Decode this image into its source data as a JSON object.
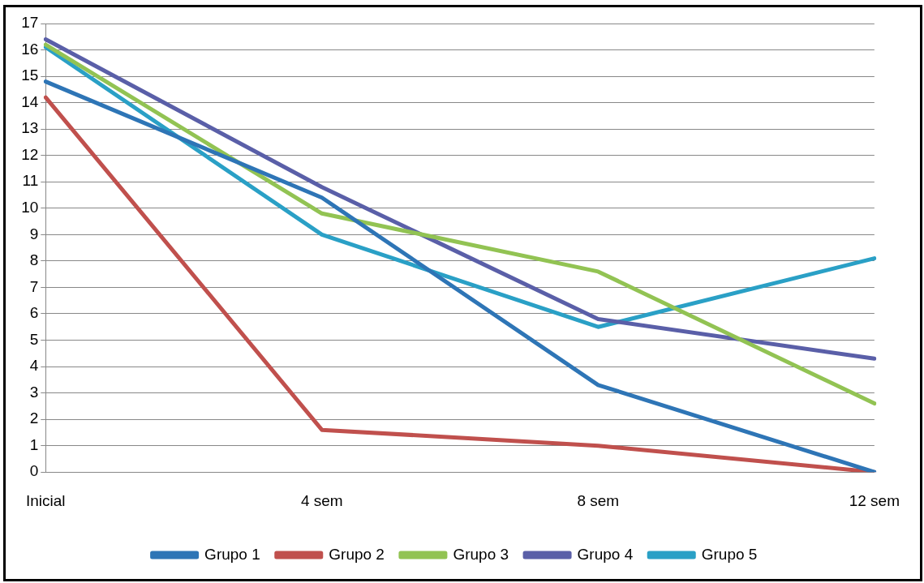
{
  "chart_data": {
    "type": "line",
    "categories": [
      "Inicial",
      "4 sem",
      "8 sem",
      "12 sem"
    ],
    "series": [
      {
        "name": "Grupo 1",
        "color": "#2e75b6",
        "values": [
          14.8,
          10.4,
          3.3,
          0
        ]
      },
      {
        "name": "Grupo 2",
        "color": "#c0504d",
        "values": [
          14.2,
          1.6,
          1.0,
          0
        ]
      },
      {
        "name": "Grupo 3",
        "color": "#92c353",
        "values": [
          16.2,
          9.8,
          7.6,
          2.6
        ]
      },
      {
        "name": "Grupo 4",
        "color": "#5a5fa8",
        "values": [
          16.4,
          10.8,
          5.8,
          4.3
        ]
      },
      {
        "name": "Grupo 5",
        "color": "#2aa0c6",
        "values": [
          16.1,
          9.0,
          5.5,
          8.1
        ]
      }
    ],
    "ylim": [
      0,
      17
    ],
    "yticks": [
      0,
      1,
      2,
      3,
      4,
      5,
      6,
      7,
      8,
      9,
      10,
      11,
      12,
      13,
      14,
      15,
      16,
      17
    ],
    "grid": "y",
    "legend": "bottom",
    "marker": "none",
    "line_style": "solid"
  }
}
